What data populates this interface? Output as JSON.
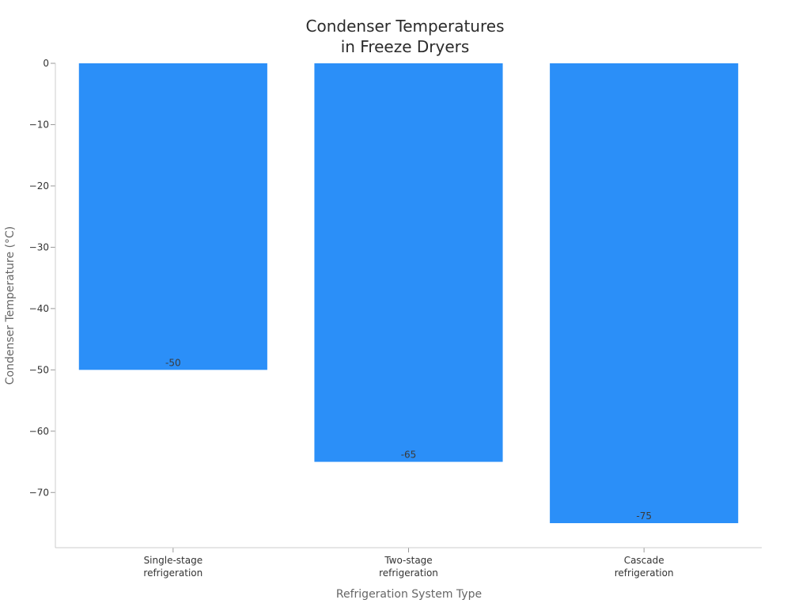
{
  "chart_data": {
    "type": "bar",
    "title_lines": [
      "Condenser Temperatures",
      "in Freeze Dryers"
    ],
    "xlabel": "Refrigeration System Type",
    "ylabel": "Condenser Temperature (°C)",
    "categories": [
      [
        "Single-stage",
        "refrigeration"
      ],
      [
        "Two-stage",
        "refrigeration"
      ],
      [
        "Cascade",
        "refrigeration"
      ]
    ],
    "values": [
      -50,
      -65,
      -75
    ],
    "value_labels": [
      "-50",
      "-65",
      "-75"
    ],
    "yticks": [
      0,
      -10,
      -20,
      -30,
      -40,
      -50,
      -60,
      -70
    ],
    "ytick_labels": [
      "0",
      "−10",
      "−20",
      "−30",
      "−40",
      "−50",
      "−60",
      "−70"
    ],
    "ylim": [
      -79,
      0
    ],
    "bar_color": "#2b8ff8",
    "grid": false,
    "legend": "none"
  }
}
